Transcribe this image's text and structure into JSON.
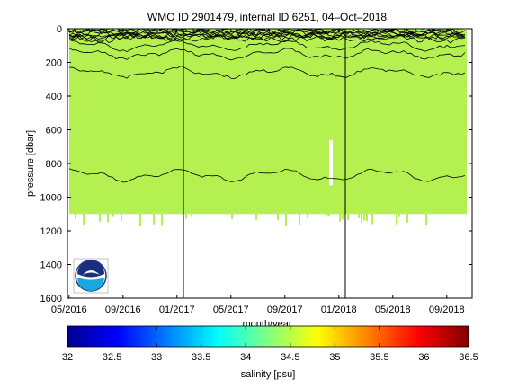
{
  "chart_data": {
    "type": "heatmap",
    "title": "WMO ID 2901479, internal ID 6251, 04–Oct–2018",
    "xlabel": "month/year",
    "ylabel": "pressure [dbar]",
    "x_ticks": [
      "05/2016",
      "09/2016",
      "01/2017",
      "05/2017",
      "09/2017",
      "01/2018",
      "05/2018",
      "09/2018"
    ],
    "y_ticks": [
      "0",
      "200",
      "400",
      "600",
      "800",
      "1000",
      "1200",
      "1400",
      "1600"
    ],
    "ylim": [
      0,
      1600
    ],
    "y_reversed": true,
    "vertical_lines_at": [
      "01/2017",
      "01/2018"
    ],
    "colorbar": {
      "label": "salinity [psu]",
      "range": [
        32,
        36.5
      ],
      "ticks": [
        "32",
        "32.5",
        "33",
        "33.5",
        "34",
        "34.5",
        "35",
        "35.5",
        "36",
        "36.5"
      ],
      "colormap": "jet"
    },
    "field": {
      "dominant_salinity_psu": 34.6,
      "dominant_color": "#b4f050",
      "surface_layer_pressure_range_dbar": [
        0,
        100
      ],
      "surface_salinity_range_psu": [
        33.7,
        34.2
      ],
      "profile_bottom_dbar": 1100,
      "contour_depths_dbar": [
        100,
        150,
        260,
        870
      ],
      "gap_month": "12/2017"
    },
    "logo": "noaa-logo"
  }
}
